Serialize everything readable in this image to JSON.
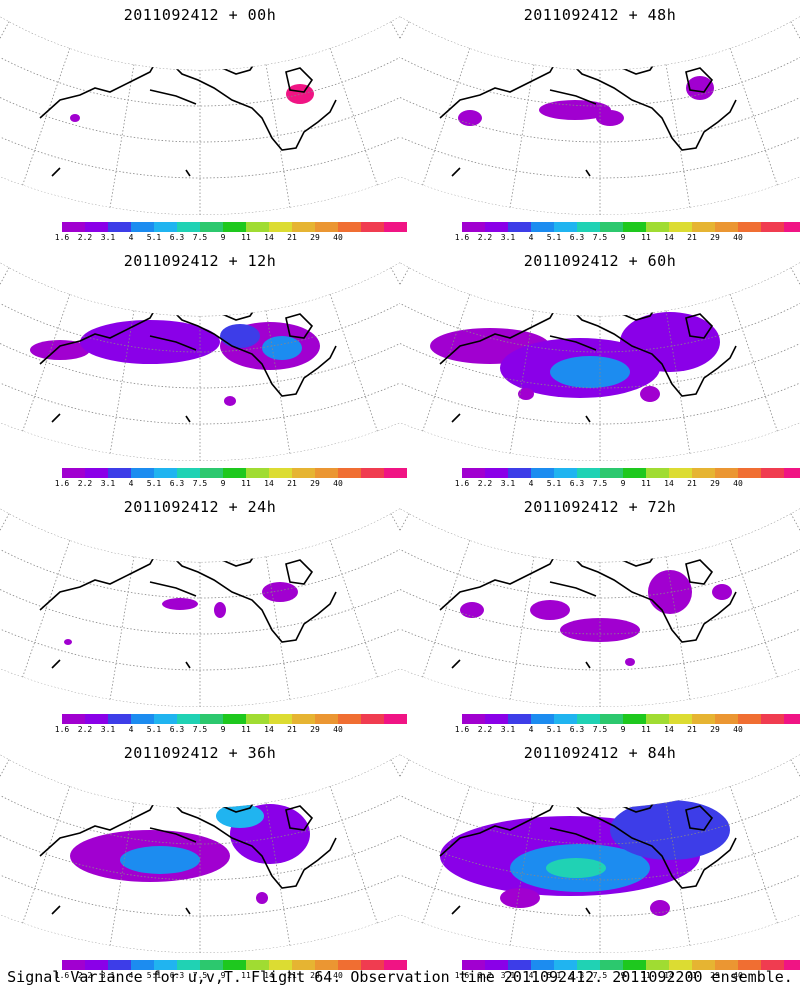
{
  "panels": [
    {
      "title": "2011092412 + 00h",
      "level": 0
    },
    {
      "title": "2011092412 + 48h",
      "level": 4
    },
    {
      "title": "2011092412 + 12h",
      "level": 1
    },
    {
      "title": "2011092412 + 60h",
      "level": 5
    },
    {
      "title": "2011092412 + 24h",
      "level": 2
    },
    {
      "title": "2011092412 + 72h",
      "level": 6
    },
    {
      "title": "2011092412 + 36h",
      "level": 3
    },
    {
      "title": "2011092412 + 84h",
      "level": 7
    }
  ],
  "colorbar": {
    "colors": [
      "#a100d0",
      "#8a00e8",
      "#3d3de8",
      "#1c8cf0",
      "#20b4f0",
      "#20d2b4",
      "#2cc86e",
      "#1ec81e",
      "#a0dc32",
      "#dcdc32",
      "#e6b432",
      "#eb9632",
      "#f06e32",
      "#f03c50",
      "#f01484"
    ],
    "labels": [
      "1.6",
      "2.2",
      "3.1",
      "4",
      "5.1",
      "6.3",
      "7.5",
      "9",
      "11",
      "14",
      "21",
      "29",
      "40"
    ]
  },
  "caption": "Signal Variance for u,v,T. Flight 64. Observation time 2011092412. 2011092200 ensemble."
}
